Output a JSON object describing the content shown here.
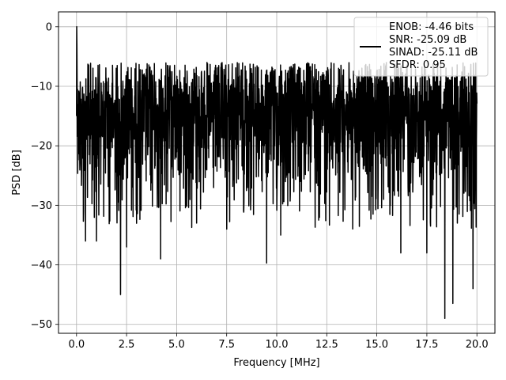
{
  "chart_data": {
    "type": "line",
    "xlabel": "Frequency [MHz]",
    "ylabel": "PSD [dB]",
    "xlim": [
      -0.9,
      20.9
    ],
    "ylim": [
      -51.5,
      2.5
    ],
    "xticks": [
      0.0,
      2.5,
      5.0,
      7.5,
      10.0,
      12.5,
      15.0,
      17.5,
      20.0
    ],
    "xtick_labels": [
      "0.0",
      "2.5",
      "5.0",
      "7.5",
      "10.0",
      "12.5",
      "15.0",
      "17.5",
      "20.0"
    ],
    "yticks": [
      0,
      -10,
      -20,
      -30,
      -40,
      -50
    ],
    "ytick_labels": [
      "0",
      "−10",
      "−20",
      "−30",
      "−40",
      "−50"
    ],
    "grid": true,
    "legend_position": "top-right",
    "legend_entries": [
      "ENOB: -4.46 bits",
      "SNR: -25.09 dB",
      "SINAD: -25.11 dB",
      "SFDR: 0.95"
    ],
    "series": [
      {
        "color": "#000000",
        "x_start": 0.0,
        "x_end": 20.0,
        "points": 2048,
        "peak": {
          "x": 0.0,
          "y": 0.0
        },
        "noise_floor_mean_db": -15.5,
        "upper_envelope_db": -6.0,
        "minima": [
          {
            "x": 0.35,
            "y": -31.0
          },
          {
            "x": 0.45,
            "y": -36.0
          },
          {
            "x": 1.0,
            "y": -36.0
          },
          {
            "x": 2.2,
            "y": -45.0
          },
          {
            "x": 2.5,
            "y": -37.0
          },
          {
            "x": 4.2,
            "y": -39.0
          },
          {
            "x": 6.0,
            "y": -33.0
          },
          {
            "x": 7.5,
            "y": -34.0
          },
          {
            "x": 9.5,
            "y": -39.7
          },
          {
            "x": 10.2,
            "y": -35.0
          },
          {
            "x": 16.2,
            "y": -38.0
          },
          {
            "x": 17.5,
            "y": -38.0
          },
          {
            "x": 18.4,
            "y": -49.0
          },
          {
            "x": 18.8,
            "y": -46.5
          },
          {
            "x": 19.8,
            "y": -44.0
          }
        ]
      }
    ]
  }
}
